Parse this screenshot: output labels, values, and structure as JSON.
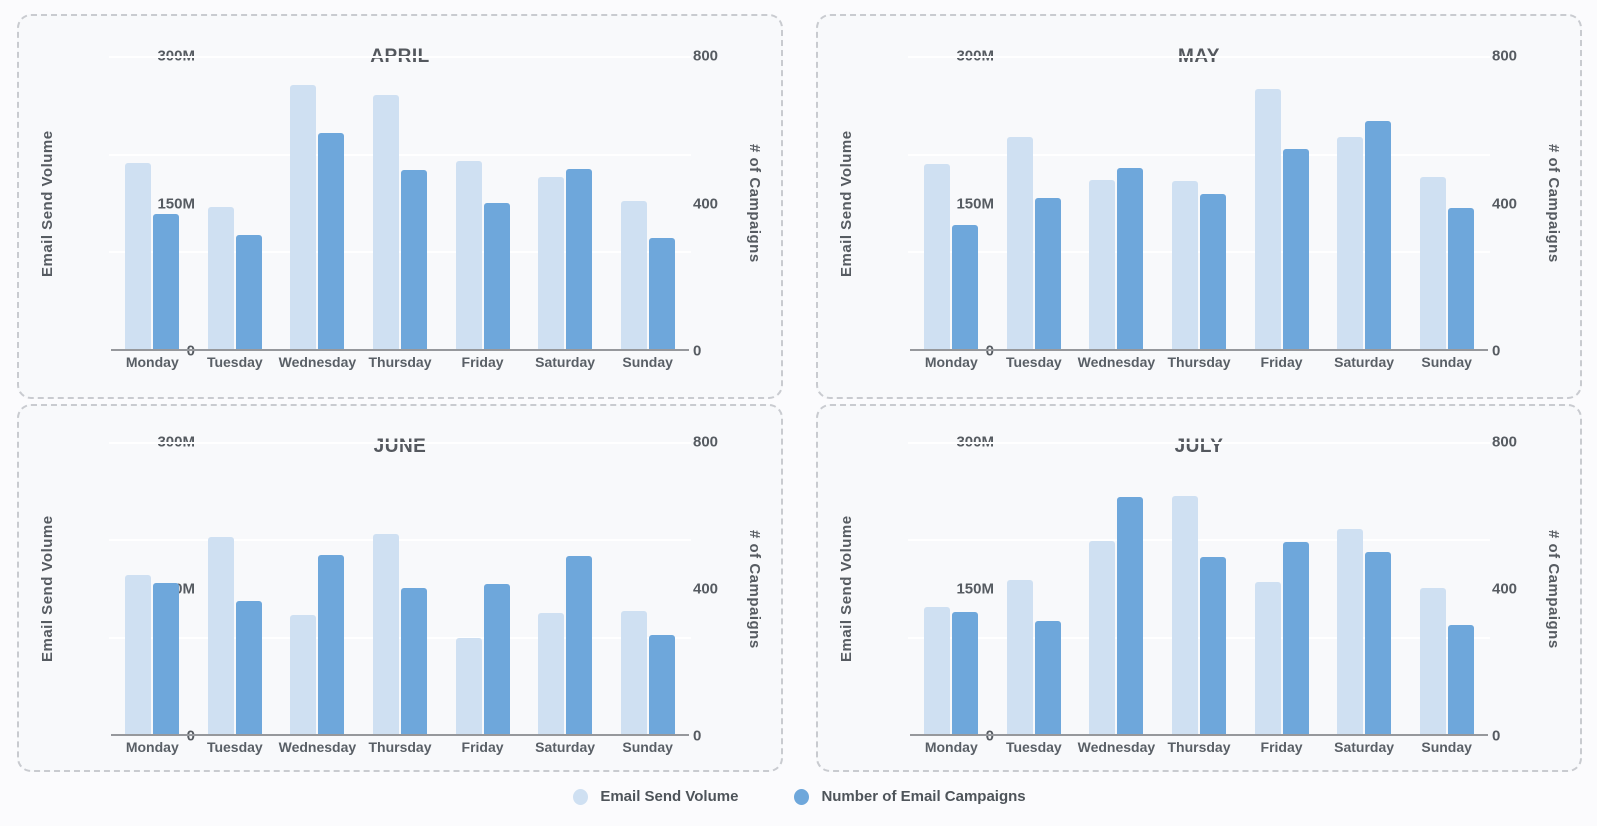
{
  "axes": {
    "left_label": "Email Send Volume",
    "right_label": "# of Campaigns",
    "left_ticks": [
      "300M",
      "150M",
      "0"
    ],
    "right_ticks": [
      "800",
      "400",
      "0"
    ],
    "left_max": 300,
    "right_max": 800
  },
  "legend": {
    "items": [
      {
        "label": "Email Send Volume",
        "color": "#cfe0f2"
      },
      {
        "label": "Number of Email Campaigns",
        "color": "#6ea7db"
      }
    ]
  },
  "chart_data": [
    {
      "type": "bar",
      "title": "APRIL",
      "categories": [
        "Monday",
        "Tuesday",
        "Wednesday",
        "Thursday",
        "Friday",
        "Saturday",
        "Sunday"
      ],
      "left_ylim": [
        0,
        300
      ],
      "right_ylim": [
        0,
        800
      ],
      "grid": "horizontal, thirds, white",
      "series": [
        {
          "name": "Email Send Volume",
          "axis": "left",
          "unit": "M",
          "color": "#cfe0f2",
          "values": [
            190,
            145,
            270,
            260,
            193,
            176,
            152
          ]
        },
        {
          "name": "Number of Email Campaigns",
          "axis": "right",
          "color": "#6ea7db",
          "values": [
            370,
            310,
            590,
            490,
            398,
            492,
            303
          ]
        }
      ]
    },
    {
      "type": "bar",
      "title": "MAY",
      "categories": [
        "Monday",
        "Tuesday",
        "Wednesday",
        "Thursday",
        "Friday",
        "Saturday",
        "Sunday"
      ],
      "left_ylim": [
        0,
        300
      ],
      "right_ylim": [
        0,
        800
      ],
      "grid": "horizontal, thirds, white",
      "series": [
        {
          "name": "Email Send Volume",
          "axis": "left",
          "unit": "M",
          "color": "#cfe0f2",
          "values": [
            189,
            217,
            173,
            172,
            266,
            217,
            176
          ]
        },
        {
          "name": "Number of Email Campaigns",
          "axis": "right",
          "color": "#6ea7db",
          "values": [
            338,
            412,
            494,
            423,
            545,
            622,
            386
          ]
        }
      ]
    },
    {
      "type": "bar",
      "title": "JUNE",
      "categories": [
        "Monday",
        "Tuesday",
        "Wednesday",
        "Thursday",
        "Friday",
        "Saturday",
        "Sunday"
      ],
      "left_ylim": [
        0,
        300
      ],
      "right_ylim": [
        0,
        800
      ],
      "grid": "horizontal, thirds, white",
      "series": [
        {
          "name": "Email Send Volume",
          "axis": "left",
          "unit": "M",
          "color": "#cfe0f2",
          "values": [
            163,
            202,
            122,
            206,
            99,
            124,
            126
          ]
        },
        {
          "name": "Number of Email Campaigns",
          "axis": "right",
          "color": "#6ea7db",
          "values": [
            414,
            364,
            491,
            400,
            411,
            488,
            271
          ]
        }
      ]
    },
    {
      "type": "bar",
      "title": "JULY",
      "categories": [
        "Monday",
        "Tuesday",
        "Wednesday",
        "Thursday",
        "Friday",
        "Saturday",
        "Sunday"
      ],
      "left_ylim": [
        0,
        300
      ],
      "right_ylim": [
        0,
        800
      ],
      "grid": "horizontal, thirds, white",
      "series": [
        {
          "name": "Email Send Volume",
          "axis": "left",
          "unit": "M",
          "color": "#cfe0f2",
          "values": [
            130,
            158,
            198,
            245,
            156,
            211,
            150
          ]
        },
        {
          "name": "Number of Email Campaigns",
          "axis": "right",
          "color": "#6ea7db",
          "values": [
            333,
            309,
            648,
            485,
            527,
            498,
            300
          ]
        }
      ]
    }
  ]
}
